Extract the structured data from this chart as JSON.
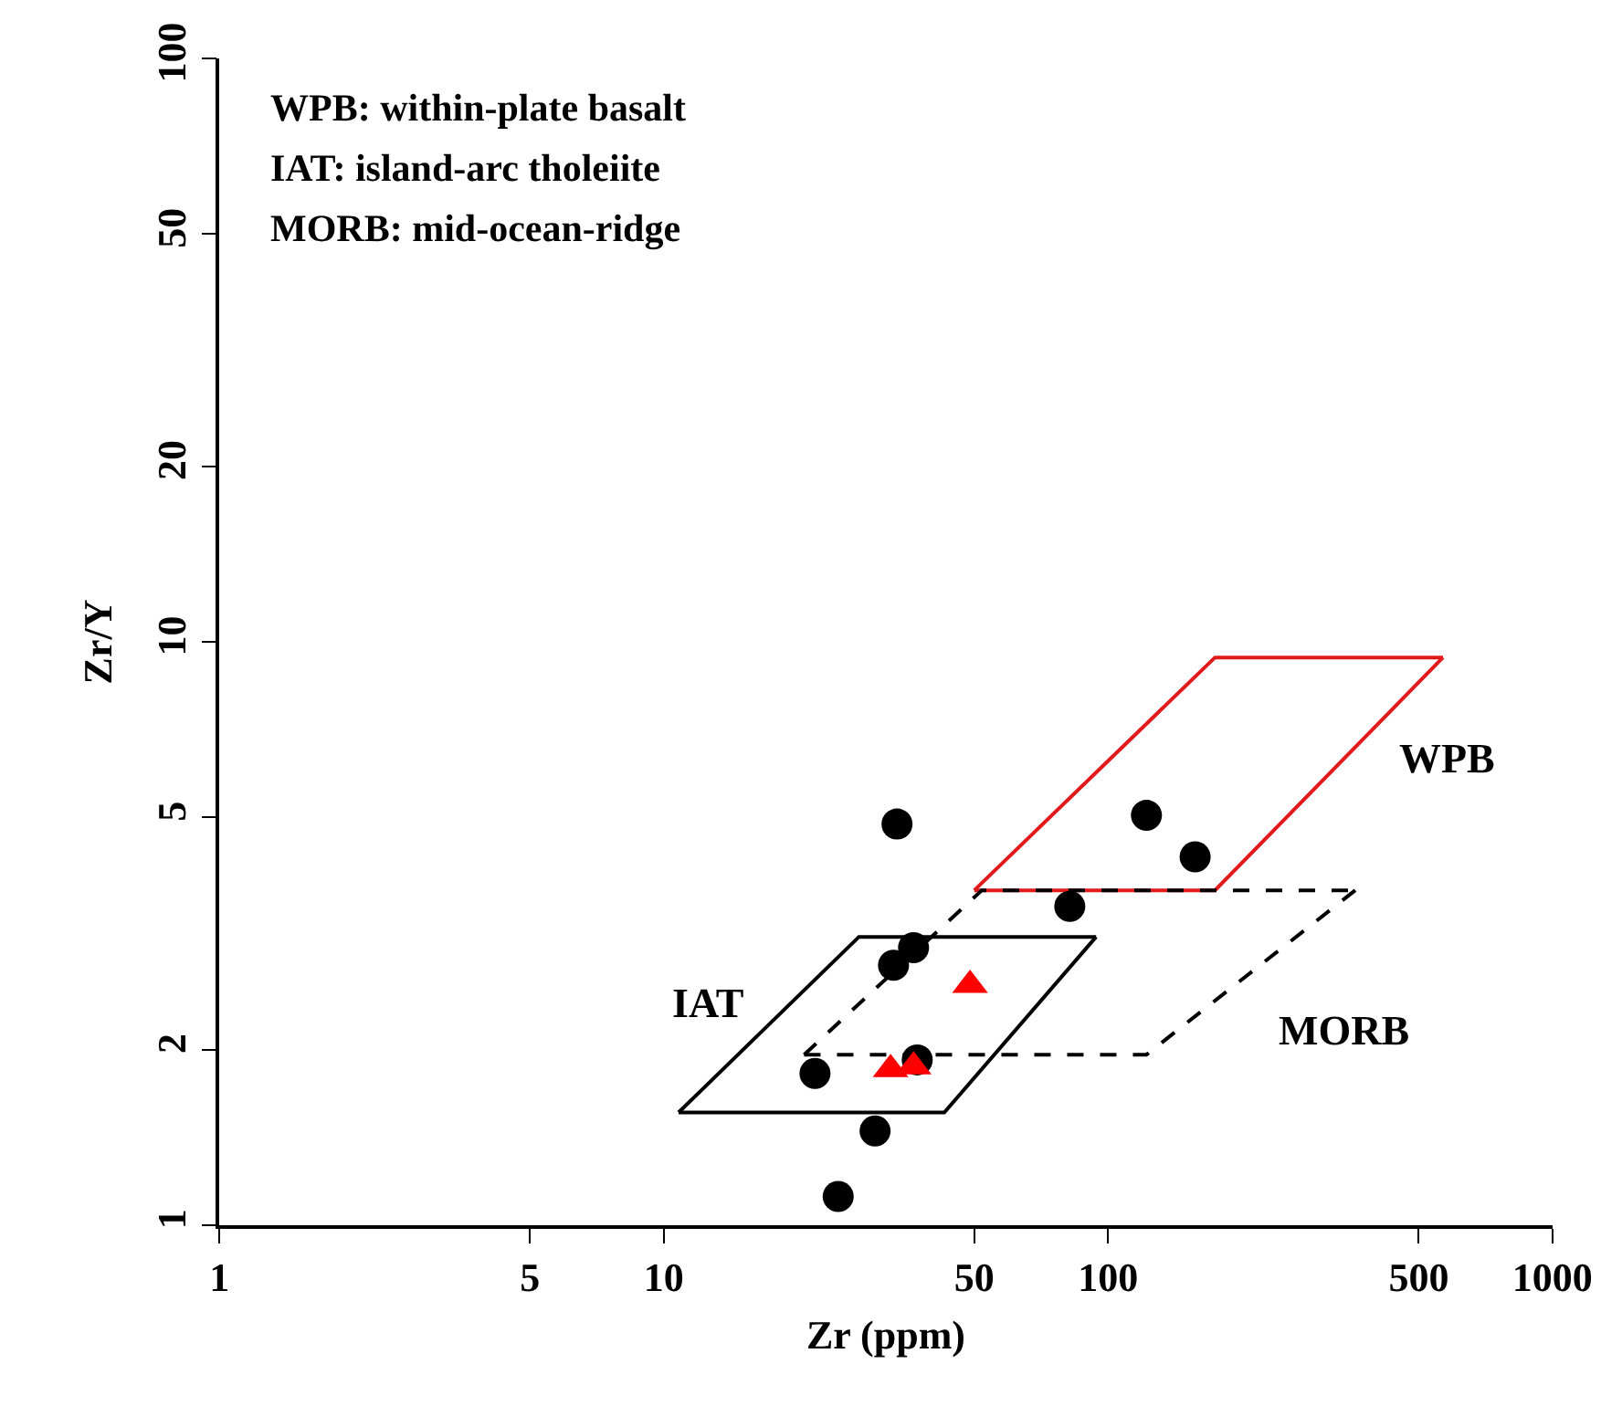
{
  "chart_data": {
    "type": "scatter",
    "xlabel": "Zr (ppm)",
    "ylabel": "Zr/Y",
    "log": "xy",
    "xlim": [
      1,
      1000
    ],
    "xticks": [
      1,
      5,
      10,
      50,
      100,
      500,
      1000
    ],
    "ylim": [
      1,
      100
    ],
    "yticks": [
      1,
      2,
      5,
      10,
      20,
      50,
      100
    ],
    "series": [
      {
        "type": "line",
        "color": "#e31a1c",
        "line_style": "solid",
        "marker": "none",
        "x": [
          50,
          174,
          567
        ],
        "values": [
          3.75,
          9.4,
          9.4
        ]
      },
      {
        "type": "line",
        "color": "#e31a1c",
        "line_style": "solid",
        "marker": "none",
        "x": [
          50,
          174,
          567
        ],
        "values": [
          3.75,
          3.75,
          9.4
        ]
      },
      {
        "type": "line",
        "color": "#000000",
        "line_style": "solid",
        "marker": "none",
        "x": [
          10.8,
          27.5,
          94
        ],
        "values": [
          1.56,
          3.12,
          3.12
        ]
      },
      {
        "type": "line",
        "color": "#000000",
        "line_style": "solid",
        "marker": "none",
        "x": [
          10.8,
          42.8,
          94
        ],
        "values": [
          1.56,
          1.56,
          3.12
        ]
      },
      {
        "type": "line",
        "color": "#000000",
        "line_style": "dashed",
        "marker": "none",
        "x": [
          20.7,
          52,
          360
        ],
        "values": [
          1.96,
          3.75,
          3.75
        ]
      },
      {
        "type": "line",
        "color": "#000000",
        "line_style": "dashed",
        "marker": "none",
        "x": [
          20.7,
          122,
          360
        ],
        "values": [
          1.96,
          1.96,
          3.75
        ]
      },
      {
        "color": "#000000",
        "marker": "circle",
        "x": [
          33.5,
          122,
          157,
          82,
          36.5,
          32.9,
          37.2,
          21.9,
          29.9,
          24.7
        ],
        "values": [
          4.87,
          5.04,
          4.28,
          3.52,
          2.99,
          2.79,
          1.92,
          1.82,
          1.45,
          1.12
        ]
      },
      {
        "color": "#ff0000",
        "marker": "triangle",
        "x": [
          48.9,
          32.4,
          36.5
        ],
        "values": [
          2.58,
          1.85,
          1.87
        ]
      }
    ],
    "annotations": [
      "WPB: within-plate basalt",
      "IAT: island-arc tholeiite",
      "MORB: mid-ocean-ridge",
      "WPB",
      "IAT",
      "MORB"
    ]
  }
}
